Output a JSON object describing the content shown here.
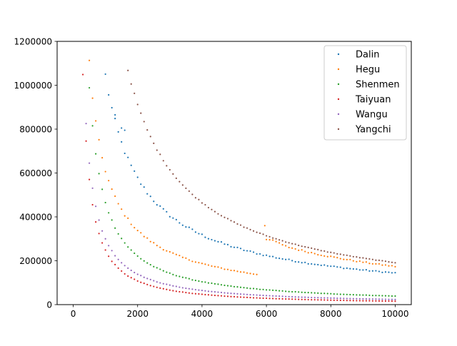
{
  "chart_data": {
    "type": "scatter",
    "title": "",
    "xlabel": "",
    "ylabel": "",
    "xlim": [
      -500,
      10500
    ],
    "ylim": [
      0,
      1200000
    ],
    "xticks": [
      0,
      2000,
      4000,
      6000,
      8000,
      10000
    ],
    "yticks": [
      0,
      200000,
      400000,
      600000,
      800000,
      1000000,
      1200000
    ],
    "xtick_labels": [
      "0",
      "2000",
      "4000",
      "6000",
      "8000",
      "10000"
    ],
    "ytick_labels": [
      "0",
      "200000",
      "400000",
      "600000",
      "800000",
      "1000000",
      "1200000"
    ],
    "grid": false,
    "legend_position": "top-right",
    "series": [
      {
        "name": "Dalin",
        "color": "#1f77b4",
        "x_start": 1000,
        "x_end": 10000,
        "k": 1045000,
        "b": 0.86,
        "noise": 0.035,
        "points": [
          [
            1500,
            805000
          ],
          [
            1600,
            795000
          ],
          [
            1300,
            865000
          ]
        ]
      },
      {
        "name": "Hegu",
        "color": "#ff7f0e",
        "x_start": 500,
        "x_end": 10000,
        "k": 1107000,
        "b": 0.79,
        "noise": 0.03,
        "segments": [
          {
            "x_start": 500,
            "x_end": 5700,
            "k": 1107000,
            "b": 0.855
          },
          {
            "x_start": 6000,
            "x_end": 6400,
            "k": 1650000,
            "b": 1.0
          },
          {
            "x_start": 6500,
            "x_end": 10000,
            "k": 1650000,
            "b": 1.0
          }
        ],
        "points": [
          [
            5950,
            360000
          ]
        ]
      },
      {
        "name": "Shenmen",
        "color": "#2ca02c",
        "x_start": 500,
        "x_end": 10000,
        "k": 988000,
        "b": 1.08,
        "noise": 0.02
      },
      {
        "name": "Taiyuan",
        "color": "#d62728",
        "x_start": 300,
        "x_end": 10000,
        "k": 1050000,
        "b": 1.2,
        "noise": 0.02
      },
      {
        "name": "Wangu",
        "color": "#9467bd",
        "x_start": 400,
        "x_end": 10000,
        "k": 830000,
        "b": 1.11,
        "noise": 0.015
      },
      {
        "name": "Yangchi",
        "color": "#8c564b",
        "x_start": 1700,
        "x_end": 10000,
        "k": 1068000,
        "b": 0.97,
        "noise": 0.01
      }
    ]
  }
}
